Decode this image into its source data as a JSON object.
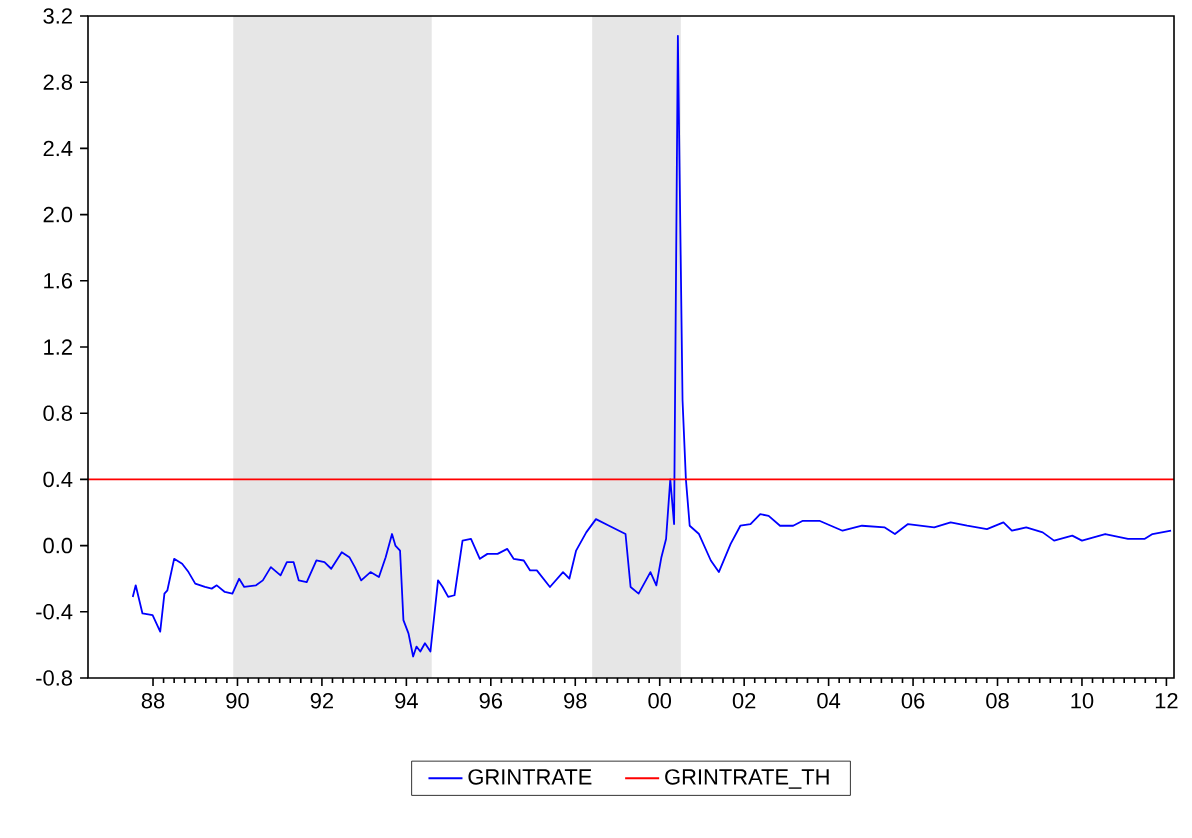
{
  "chart_data": {
    "type": "line",
    "xlim": [
      1986.46,
      2012.18
    ],
    "xticks": [
      {
        "value": 1988,
        "label": "88"
      },
      {
        "value": 1990,
        "label": "90"
      },
      {
        "value": 1992,
        "label": "92"
      },
      {
        "value": 1994,
        "label": "94"
      },
      {
        "value": 1996,
        "label": "96"
      },
      {
        "value": 1998,
        "label": "98"
      },
      {
        "value": 2000,
        "label": "00"
      },
      {
        "value": 2002,
        "label": "02"
      },
      {
        "value": 2004,
        "label": "04"
      },
      {
        "value": 2006,
        "label": "06"
      },
      {
        "value": 2008,
        "label": "08"
      },
      {
        "value": 2010,
        "label": "10"
      },
      {
        "value": 2012,
        "label": "12"
      }
    ],
    "ylim": [
      -0.8,
      3.2
    ],
    "yticks": [
      {
        "value": -0.8,
        "label": "-0.8"
      },
      {
        "value": -0.4,
        "label": "-0.4"
      },
      {
        "value": 0,
        "label": "0.0"
      },
      {
        "value": 0.4,
        "label": "0.4"
      },
      {
        "value": 0.8,
        "label": "0.8"
      },
      {
        "value": 1.2,
        "label": "1.2"
      },
      {
        "value": 1.6,
        "label": "1.6"
      },
      {
        "value": 2.0,
        "label": "2.0"
      },
      {
        "value": 2.4,
        "label": "2.4"
      },
      {
        "value": 2.8,
        "label": "2.8"
      },
      {
        "value": 3.2,
        "label": "3.2"
      }
    ],
    "bands": [
      {
        "axis": "x",
        "from": 1989.9,
        "to": 1994.6,
        "color": "#e6e6e6"
      },
      {
        "axis": "x",
        "from": 1998.4,
        "to": 2000.5,
        "color": "#e6e6e6"
      }
    ],
    "legend": "bottom",
    "grid": false,
    "series": [
      {
        "name": "GRINTRATE",
        "color": "#0000ff",
        "x": [
          1987.52,
          1987.59,
          1987.75,
          1987.99,
          1988.17,
          1988.27,
          1988.34,
          1988.5,
          1988.69,
          1988.84,
          1989.0,
          1989.23,
          1989.39,
          1989.51,
          1989.7,
          1989.88,
          1990.04,
          1990.16,
          1990.44,
          1990.6,
          1990.79,
          1991.02,
          1991.17,
          1991.33,
          1991.45,
          1991.64,
          1991.87,
          1992.06,
          1992.22,
          1992.47,
          1992.65,
          1992.78,
          1992.93,
          1993.15,
          1993.35,
          1993.51,
          1993.66,
          1993.74,
          1993.85,
          1993.93,
          1994.05,
          1994.16,
          1994.24,
          1994.33,
          1994.44,
          1994.57,
          1994.75,
          1994.86,
          1994.99,
          1995.14,
          1995.33,
          1995.53,
          1995.74,
          1995.92,
          1996.16,
          1996.39,
          1996.54,
          1996.78,
          1996.93,
          1997.09,
          1997.4,
          1997.71,
          1997.86,
          1998.02,
          1998.26,
          1998.49,
          1998.8,
          1999.19,
          1999.31,
          1999.5,
          1999.78,
          1999.92,
          2000.04,
          2000.15,
          2000.25,
          2000.34,
          2000.43,
          2000.54,
          2000.62,
          2000.71,
          2000.93,
          2001.21,
          2001.4,
          2001.68,
          2001.91,
          2002.15,
          2002.38,
          2002.58,
          2002.85,
          2003.16,
          2003.39,
          2003.78,
          2004.33,
          2004.79,
          2005.33,
          2005.57,
          2005.88,
          2006.5,
          2006.89,
          2007.28,
          2007.75,
          2008.14,
          2008.34,
          2008.68,
          2009.07,
          2009.34,
          2009.77,
          2010.0,
          2010.55,
          2011.09,
          2011.48,
          2011.67,
          2012.11
        ],
        "values": [
          -0.31,
          -0.24,
          -0.41,
          -0.42,
          -0.52,
          -0.29,
          -0.27,
          -0.08,
          -0.11,
          -0.16,
          -0.23,
          -0.25,
          -0.26,
          -0.24,
          -0.28,
          -0.29,
          -0.2,
          -0.25,
          -0.24,
          -0.21,
          -0.13,
          -0.18,
          -0.1,
          -0.1,
          -0.21,
          -0.22,
          -0.09,
          -0.1,
          -0.14,
          -0.04,
          -0.07,
          -0.13,
          -0.21,
          -0.16,
          -0.19,
          -0.07,
          0.07,
          0.0,
          -0.03,
          -0.45,
          -0.53,
          -0.67,
          -0.61,
          -0.64,
          -0.59,
          -0.64,
          -0.21,
          -0.25,
          -0.31,
          -0.3,
          0.03,
          0.04,
          -0.08,
          -0.05,
          -0.05,
          -0.02,
          -0.08,
          -0.09,
          -0.15,
          -0.15,
          -0.25,
          -0.16,
          -0.2,
          -0.03,
          0.08,
          0.16,
          0.12,
          0.07,
          -0.25,
          -0.29,
          -0.16,
          -0.24,
          -0.07,
          0.04,
          0.4,
          0.13,
          3.08,
          0.88,
          0.4,
          0.12,
          0.07,
          -0.09,
          -0.16,
          0.01,
          0.12,
          0.13,
          0.19,
          0.18,
          0.12,
          0.12,
          0.15,
          0.15,
          0.09,
          0.12,
          0.11,
          0.07,
          0.13,
          0.11,
          0.14,
          0.12,
          0.1,
          0.14,
          0.09,
          0.11,
          0.08,
          0.03,
          0.06,
          0.03,
          0.07,
          0.04,
          0.04,
          0.07,
          0.09
        ]
      },
      {
        "name": "GRINTRATE_TH",
        "color": "#ff0000",
        "x": [
          1986.46,
          2012.18
        ],
        "values": [
          0.4,
          0.4
        ]
      }
    ]
  }
}
